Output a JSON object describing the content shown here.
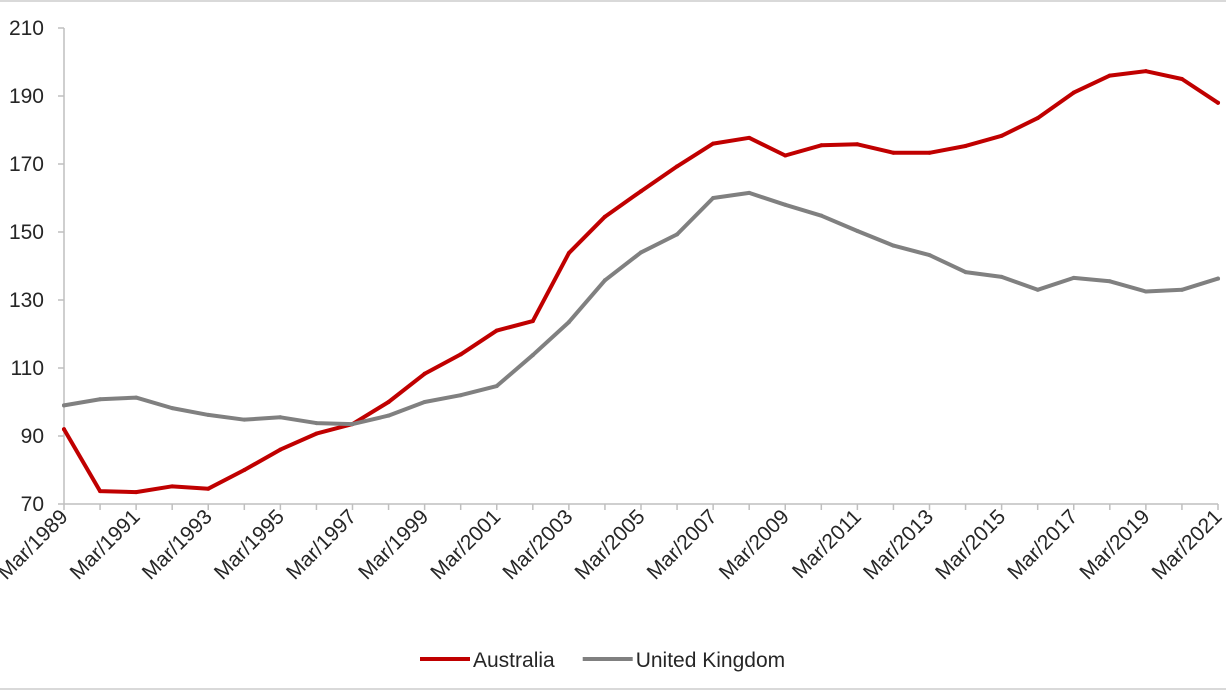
{
  "chart_data": {
    "type": "line",
    "title": "",
    "xlabel": "",
    "ylabel": "",
    "ylim": [
      70,
      210
    ],
    "yticks": [
      70,
      90,
      110,
      130,
      150,
      170,
      190,
      210
    ],
    "x": [
      1989,
      1990,
      1991,
      1992,
      1993,
      1994,
      1995,
      1996,
      1997,
      1998,
      1999,
      2000,
      2001,
      2002,
      2003,
      2004,
      2005,
      2006,
      2007,
      2008,
      2009,
      2010,
      2011,
      2012,
      2013,
      2014,
      2015,
      2016,
      2017,
      2018,
      2019,
      2020,
      2021
    ],
    "xtick_labels": [
      "Mar/1989",
      "Mar/1991",
      "Mar/1993",
      "Mar/1995",
      "Mar/1997",
      "Mar/1999",
      "Mar/2001",
      "Mar/2003",
      "Mar/2005",
      "Mar/2007",
      "Mar/2009",
      "Mar/2011",
      "Mar/2013",
      "Mar/2015",
      "Mar/2017",
      "Mar/2019",
      "Mar/2021"
    ],
    "grid": false,
    "legend_position": "bottom",
    "series": [
      {
        "name": "Australia",
        "color": "#c00000",
        "values": [
          92,
          73.8,
          73.5,
          75.2,
          74.5,
          80,
          86,
          90.7,
          93.5,
          100,
          108.3,
          114,
          121,
          123.8,
          143.8,
          154.5,
          162,
          169.3,
          176,
          177.7,
          172.5,
          175.5,
          175.8,
          173.3,
          173.3,
          175.3,
          178.3,
          183.5,
          191,
          196,
          197.3,
          195,
          188
        ]
      },
      {
        "name": "United Kingdom",
        "color": "#808080",
        "values": [
          99,
          100.8,
          101.3,
          98.2,
          96.2,
          94.8,
          95.5,
          93.8,
          93.5,
          96,
          100,
          102,
          104.7,
          113.8,
          123.5,
          135.8,
          144,
          149.3,
          160,
          161.5,
          158,
          154.8,
          150.3,
          146,
          143.2,
          138.2,
          136.8,
          133,
          136.5,
          135.5,
          132.5,
          133,
          136.3
        ]
      }
    ]
  }
}
